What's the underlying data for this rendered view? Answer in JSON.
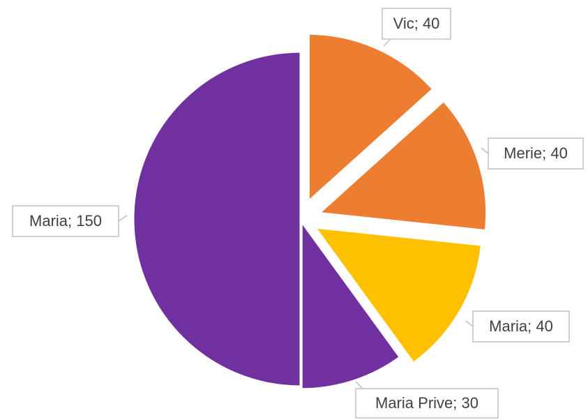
{
  "chart_data": {
    "type": "pie",
    "values": [
      40,
      40,
      40,
      30,
      150
    ],
    "value_labels": [
      "Vic; 40",
      "Merie; 40",
      "Maria; 40",
      "Maria Prive; 30",
      "Maria; 150"
    ],
    "colors": [
      "#ED7D31",
      "#ED7D31",
      "#FFC000",
      "#7030A0",
      "#7030A0"
    ]
  }
}
